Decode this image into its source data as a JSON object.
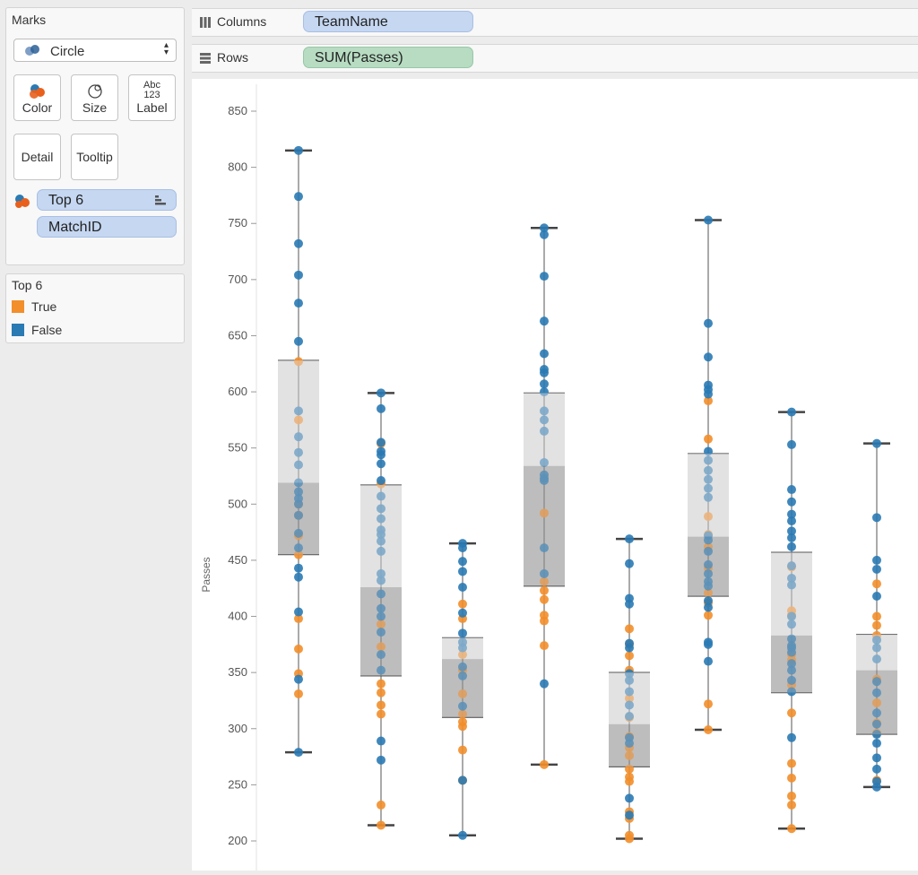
{
  "marks_card": {
    "title": "Marks",
    "mark_type": "Circle",
    "buttons": {
      "color": "Color",
      "size": "Size",
      "label_line1": "Abc",
      "label_line2": "123",
      "label": "Label",
      "detail": "Detail",
      "tooltip": "Tooltip"
    },
    "pills": {
      "color_field": "Top 6",
      "detail_field": "MatchID"
    }
  },
  "legend": {
    "title": "Top 6",
    "items": [
      {
        "label": "True",
        "color": "#f28e2b"
      },
      {
        "label": "False",
        "color": "#2a7ab4"
      }
    ]
  },
  "shelves": {
    "columns": {
      "name": "Columns",
      "pill": "TeamName"
    },
    "rows": {
      "name": "Rows",
      "pill": "SUM(Passes)"
    }
  },
  "colors": {
    "true": "#f28e2b",
    "false": "#2a7ab4",
    "box_upper": "#e2e2e2",
    "box_lower": "#bdbdbd"
  },
  "chart_data": {
    "type": "scatter",
    "subtype": "box-plot with jittered circle marks",
    "ylabel": "Passes",
    "ylim": [
      200,
      850
    ],
    "yticks": [
      200,
      250,
      300,
      350,
      400,
      450,
      500,
      550,
      600,
      650,
      700,
      750,
      800,
      850
    ],
    "grid": false,
    "boxes": [
      {
        "whisker_low": 279,
        "q1": 455,
        "median": 519,
        "q3": 628,
        "whisker_high": 815
      },
      {
        "whisker_low": 214,
        "q1": 347,
        "median": 426,
        "q3": 517,
        "whisker_high": 599
      },
      {
        "whisker_low": 205,
        "q1": 310,
        "median": 362,
        "q3": 381,
        "whisker_high": 465
      },
      {
        "whisker_low": 268,
        "q1": 427,
        "median": 534,
        "q3": 599,
        "whisker_high": 746
      },
      {
        "whisker_low": 202,
        "q1": 266,
        "median": 304,
        "q3": 350,
        "whisker_high": 469
      },
      {
        "whisker_low": 299,
        "q1": 418,
        "median": 471,
        "q3": 545,
        "whisker_high": 753
      },
      {
        "whisker_low": 211,
        "q1": 332,
        "median": 383,
        "q3": 457,
        "whisker_high": 582
      },
      {
        "whisker_low": 248,
        "q1": 295,
        "median": 352,
        "q3": 384,
        "whisker_high": 554
      }
    ],
    "series": [
      {
        "top6": false,
        "values": [
          [
            815,
            774,
            732,
            704,
            679,
            645,
            583,
            560,
            546,
            535,
            519,
            511,
            505,
            500,
            490,
            474,
            461,
            443,
            435,
            404,
            344,
            279
          ],
          [
            599,
            585,
            555,
            547,
            544,
            536,
            521,
            507,
            496,
            487,
            477,
            473,
            467,
            458,
            438,
            432,
            420,
            407,
            400,
            386,
            366,
            352,
            289,
            272
          ],
          [
            465,
            461,
            449,
            440,
            426,
            403,
            385,
            377,
            372,
            355,
            347,
            320,
            254,
            205
          ],
          [
            746,
            740,
            703,
            663,
            634,
            620,
            617,
            607,
            600,
            583,
            575,
            565,
            537,
            526,
            523,
            521,
            461,
            438,
            340
          ],
          [
            469,
            447,
            416,
            411,
            376,
            372,
            349,
            343,
            333,
            321,
            311,
            292,
            287,
            238,
            223
          ],
          [
            753,
            661,
            631,
            606,
            602,
            598,
            547,
            539,
            530,
            522,
            514,
            506,
            472,
            468,
            458,
            446,
            438,
            431,
            427,
            414,
            408,
            377,
            375,
            360
          ],
          [
            582,
            553,
            513,
            502,
            491,
            485,
            476,
            470,
            462,
            445,
            434,
            428,
            400,
            393,
            380,
            374,
            372,
            368,
            358,
            352,
            343,
            333,
            292
          ],
          [
            554,
            488,
            450,
            442,
            418,
            379,
            372,
            362,
            342,
            332,
            314,
            304,
            295,
            287,
            274,
            264,
            253,
            248
          ]
        ]
      },
      {
        "top6": true,
        "values": [
          [
            627,
            575,
            500,
            490,
            472,
            455,
            398,
            371,
            349,
            331
          ],
          [
            554,
            518,
            393,
            373,
            340,
            332,
            321,
            313,
            232,
            214
          ],
          [
            411,
            398,
            366,
            352,
            331,
            313,
            306,
            302,
            281,
            254
          ],
          [
            492,
            431,
            423,
            415,
            401,
            396,
            374,
            268
          ],
          [
            389,
            375,
            365,
            352,
            327,
            310,
            293,
            283,
            276,
            264,
            257,
            253,
            226,
            220,
            205,
            202
          ],
          [
            592,
            558,
            489,
            473,
            462,
            443,
            421,
            412,
            401,
            322,
            299
          ],
          [
            444,
            405,
            401,
            366,
            361,
            339,
            314,
            269,
            256,
            240,
            232,
            211
          ],
          [
            429,
            400,
            392,
            383,
            344,
            323,
            305,
            296,
            254
          ]
        ]
      }
    ]
  }
}
